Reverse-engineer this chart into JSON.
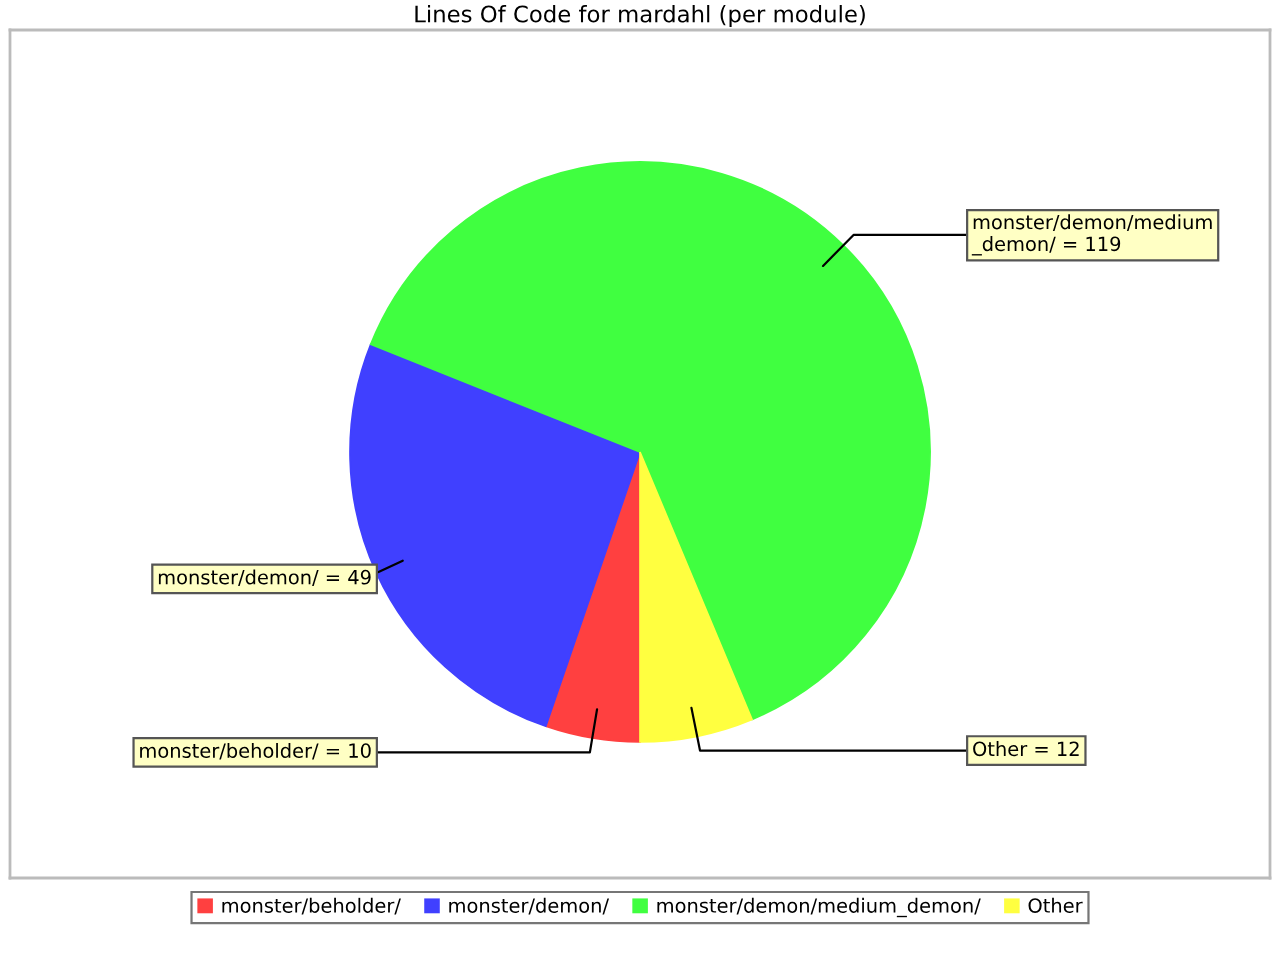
{
  "chart_data": {
    "type": "pie",
    "title": "Lines Of Code for mardahl (per module)",
    "categories": [
      "monster/beholder/",
      "monster/demon/",
      "monster/demon/medium_demon/",
      "Other"
    ],
    "values": [
      10,
      49,
      119,
      12
    ],
    "colors": [
      "#ff4040",
      "#4040ff",
      "#40ff40",
      "#ffff40"
    ],
    "value_labels": [
      "monster/beholder/ = 10",
      "monster/demon/ = 49",
      "monster/demon/medium_demon/ = 119",
      "Other = 12"
    ],
    "legend": "bottom"
  }
}
